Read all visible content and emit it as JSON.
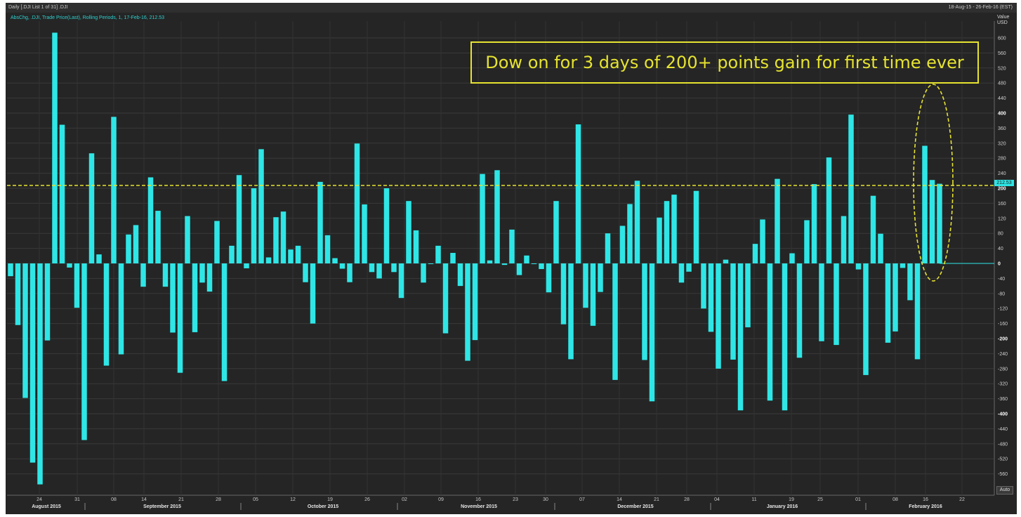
{
  "header": {
    "left": "Daily [.DJI List 1 of 31] .DJI",
    "right": "18-Aug-15 - 26-Feb-16 (EST)"
  },
  "subtitle": "AbsChg, .DJI, Trade Price(Last), Rolling Periods, 1, 17-Feb-16, 212.53",
  "annotation": "Dow on for 3 days of 200+ points gain for first time ever",
  "axis_header": {
    "line1": "Value",
    "line2": "USD"
  },
  "auto_label": "Auto",
  "reference": {
    "value": 200,
    "label": "212.53",
    "color": "#e6e330"
  },
  "colors": {
    "bars": "#2fe6e6",
    "background": "#252525",
    "reference": "#e6e330"
  },
  "chart_data": {
    "type": "bar",
    "ylim": [
      -600,
      640
    ],
    "y_ticks": [
      -560,
      -520,
      -480,
      -440,
      -400,
      -360,
      -320,
      -280,
      -240,
      -200,
      -160,
      -120,
      -80,
      -40,
      0,
      40,
      80,
      120,
      160,
      200,
      240,
      280,
      320,
      360,
      400,
      440,
      480,
      520,
      560,
      600
    ],
    "y_bold_ticks": [
      -400,
      -200,
      0,
      200,
      400
    ],
    "grid": true,
    "x_day_ticks": [
      "24",
      "31",
      "08",
      "14",
      "21",
      "28",
      "05",
      "12",
      "19",
      "26",
      "02",
      "09",
      "16",
      "23",
      "30",
      "07",
      "14",
      "21",
      "28",
      "04",
      "11",
      "19",
      "25",
      "01",
      "08",
      "16",
      "22"
    ],
    "x_month_labels": [
      "August 2015",
      "September 2015",
      "October 2015",
      "November 2015",
      "December 2015",
      "January 2016",
      "February 2016"
    ],
    "values": [
      -34,
      -164,
      -358,
      -530,
      -588,
      -205,
      614,
      369,
      -11,
      -118,
      -470,
      293,
      24,
      -272,
      390,
      -242,
      77,
      102,
      -62,
      229,
      140,
      -62,
      -184,
      -291,
      126,
      -183,
      -51,
      -75,
      113,
      -313,
      47,
      235,
      -13,
      200,
      304,
      16,
      123,
      138,
      37,
      47,
      -50,
      -160,
      217,
      75,
      14,
      -14,
      -50,
      319,
      157,
      -23,
      -40,
      200,
      -23,
      -92,
      166,
      88,
      -51,
      0,
      47,
      -186,
      28,
      -60,
      -259,
      -204,
      238,
      8,
      248,
      -4,
      90,
      -31,
      21,
      0,
      -15,
      -77,
      166,
      -162,
      -255,
      370,
      -118,
      -166,
      -76,
      80,
      -310,
      100,
      158,
      220,
      -257,
      -367,
      122,
      166,
      183,
      -51,
      -22,
      193,
      -120,
      -182,
      -280,
      10,
      -256,
      -391,
      -170,
      52,
      117,
      -365,
      225,
      -391,
      27,
      -251,
      115,
      211,
      -207,
      282,
      -217,
      126,
      396,
      -16,
      -297,
      180,
      79,
      -211,
      -181,
      -12,
      -98,
      -255,
      313,
      222,
      212
    ]
  }
}
